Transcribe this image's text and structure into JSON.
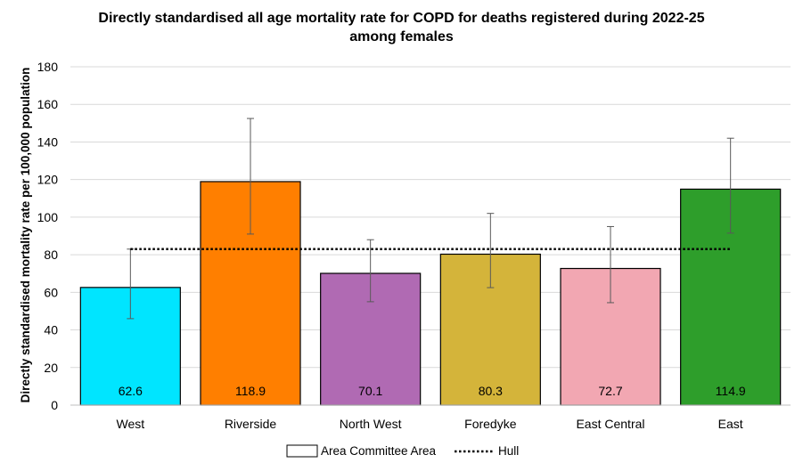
{
  "chart_data": {
    "type": "bar",
    "title_lines": [
      "Directly standardised all age mortality rate for COPD for deaths registered during 2022-25",
      "among females"
    ],
    "xlabel": "",
    "ylabel": "Directly standardised mortality rate per 100,000 population",
    "ylim": [
      0,
      180
    ],
    "yticks": [
      0,
      20,
      40,
      60,
      80,
      100,
      120,
      140,
      160,
      180
    ],
    "grid": true,
    "legend_position": "bottom",
    "categories": [
      "West",
      "Riverside",
      "North West",
      "Foredyke",
      "East Central",
      "East"
    ],
    "values": [
      62.6,
      118.9,
      70.1,
      80.3,
      72.7,
      114.9
    ],
    "value_labels": [
      "62.6",
      "118.9",
      "70.1",
      "80.3",
      "72.7",
      "114.9"
    ],
    "error_lower": [
      46,
      91,
      55,
      62.5,
      54.5,
      91.5
    ],
    "error_upper": [
      83,
      152.5,
      88,
      102,
      95,
      142
    ],
    "colors": [
      "#00E5FF",
      "#FF7F00",
      "#B06AB3",
      "#D4B43A",
      "#F2A7B2",
      "#2E9E2B"
    ],
    "reference_line": {
      "name": "Hull",
      "value": 83
    },
    "legend": [
      {
        "label": "Area Committee Area",
        "kind": "box"
      },
      {
        "label": "Hull",
        "kind": "dotted-line"
      }
    ]
  }
}
